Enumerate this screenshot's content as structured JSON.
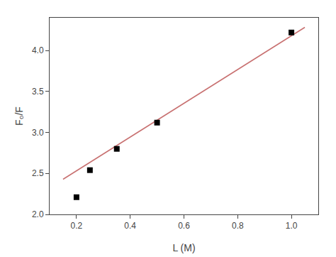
{
  "chart_data": {
    "type": "scatter",
    "xlabel": "L (M)",
    "ylabel": "F₀/F",
    "xlim": [
      0.1,
      1.1
    ],
    "ylim": [
      2.0,
      4.4
    ],
    "xticks": [
      0.2,
      0.4,
      0.6,
      0.8,
      {
        "value": 1.0,
        "label": "1.0"
      }
    ],
    "yticks": [
      {
        "value": 2.0,
        "label": "2.0"
      },
      2.5,
      {
        "value": 3.0,
        "label": "3.0"
      },
      3.5,
      {
        "value": 4.0,
        "label": "4.0"
      }
    ],
    "grid": false,
    "series": [
      {
        "type": "line",
        "color": "#c87070",
        "x": [
          0.15,
          1.05
        ],
        "values": [
          2.429,
          4.283
        ]
      },
      {
        "type": "scatter",
        "color": "black",
        "marker": "square",
        "x": [
          0.2,
          0.25,
          0.35,
          0.5,
          1.0
        ],
        "values": [
          2.21,
          2.54,
          2.8,
          3.12,
          4.22
        ]
      }
    ]
  }
}
